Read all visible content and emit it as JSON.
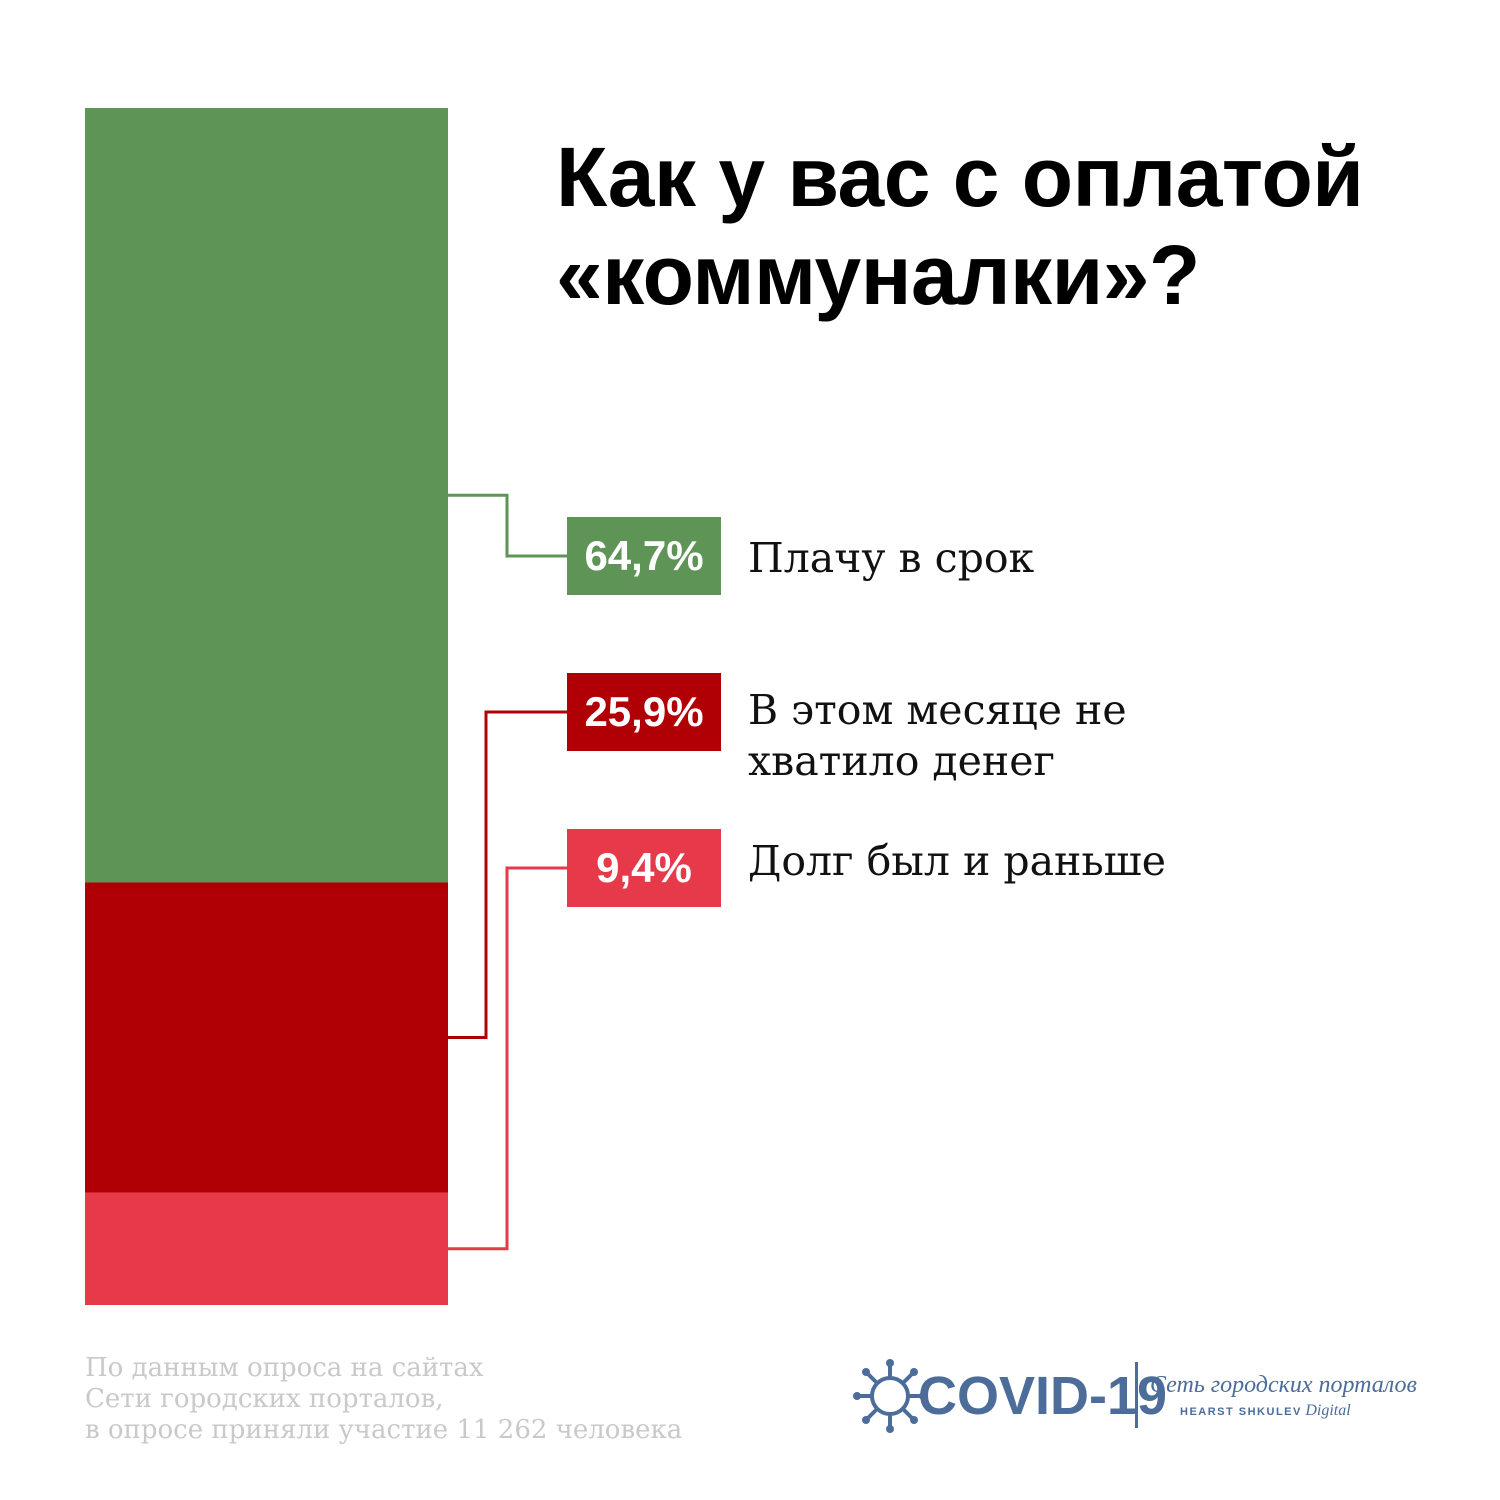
{
  "title": {
    "line1": "Как у вас с оплатой",
    "line2": "«коммуналки»?"
  },
  "chart_data": {
    "type": "bar",
    "stacked": true,
    "categories": [
      "Плачу в срок",
      "В этом месяце не хватило денег",
      "Долг был и раньше"
    ],
    "values": [
      64.7,
      25.9,
      9.4
    ],
    "value_labels": [
      "64,7%",
      "25,9%",
      "9,4%"
    ],
    "colors": [
      "#5e9455",
      "#b00005",
      "#e63a4a"
    ],
    "unit": "%",
    "title": "Как у вас с оплатой «коммуналки»?"
  },
  "legend": [
    {
      "badge": "64,7%",
      "lines": [
        "Плачу в срок"
      ],
      "color": "#5e9455"
    },
    {
      "badge": "25,9%",
      "lines": [
        "В этом месяце не",
        "хватило денег"
      ],
      "color": "#b00005"
    },
    {
      "badge": "9,4%",
      "lines": [
        "Долг был и раньше"
      ],
      "color": "#e63a4a"
    }
  ],
  "source": {
    "line1": "По данным опроса на сайтах",
    "line2": "Сети городских порталов,",
    "line3": "в опросе приняли участие 11 262 человека"
  },
  "logo": {
    "icon": "virus-icon",
    "word": "COVID-19",
    "network": "Сеть городских порталов",
    "brand": "HEARST SHKULEV",
    "brand_suffix": "Digital",
    "color": "#4c6c9a"
  }
}
